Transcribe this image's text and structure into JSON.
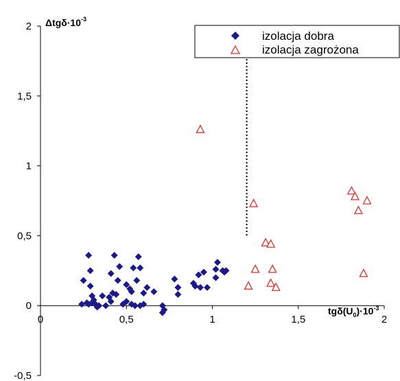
{
  "chart_data": {
    "type": "scatter",
    "title": "",
    "ylabel": {
      "main": "Δtgδ·10",
      "sup": "-3"
    },
    "xlabel": {
      "part1": "tgδ(U",
      "sub": "0",
      "part2": ")·10",
      "sup": "-3"
    },
    "xlim": [
      0,
      2
    ],
    "ylim": [
      -0.5,
      2
    ],
    "x_ticks": [
      0,
      0.5,
      1,
      1.5,
      2
    ],
    "x_tick_labels": [
      "0",
      "0,5",
      "1",
      "1,5",
      "2"
    ],
    "y_ticks": [
      -0.5,
      0,
      0.5,
      1,
      1.5,
      2
    ],
    "y_tick_labels": [
      "-0,5",
      "0",
      "0,5",
      "1",
      "1,5",
      "2"
    ],
    "grid": false,
    "legend_position": "top-right",
    "threshold_line": {
      "x": 1.2,
      "y_from": 0.5,
      "y_to": 2,
      "style": "dotted"
    },
    "series": [
      {
        "name": "izolacja dobra",
        "marker": "diamond",
        "color": "#1a1a8c",
        "points": [
          [
            0.24,
            0.01
          ],
          [
            0.25,
            0.18
          ],
          [
            0.27,
            0.02
          ],
          [
            0.28,
            0.36
          ],
          [
            0.28,
            0.01
          ],
          [
            0.29,
            0.25
          ],
          [
            0.29,
            0.14
          ],
          [
            0.3,
            0.07
          ],
          [
            0.3,
            0.02
          ],
          [
            0.31,
            0.04
          ],
          [
            0.32,
            0.01
          ],
          [
            0.33,
            -0.01
          ],
          [
            0.34,
            0.0
          ],
          [
            0.36,
            0.07
          ],
          [
            0.38,
            0.0
          ],
          [
            0.4,
            0.06
          ],
          [
            0.41,
            0.03
          ],
          [
            0.41,
            0.23
          ],
          [
            0.42,
            0.09
          ],
          [
            0.43,
            0.36
          ],
          [
            0.44,
            0.08
          ],
          [
            0.45,
            0.18
          ],
          [
            0.46,
            0.28
          ],
          [
            0.48,
            0.01
          ],
          [
            0.5,
            0.15
          ],
          [
            0.5,
            0.03
          ],
          [
            0.52,
            0.12
          ],
          [
            0.53,
            0.01
          ],
          [
            0.53,
            0.1
          ],
          [
            0.54,
            0.27
          ],
          [
            0.55,
            0.0
          ],
          [
            0.56,
            0.18
          ],
          [
            0.57,
            0.35
          ],
          [
            0.58,
            0.27
          ],
          [
            0.58,
            0.0
          ],
          [
            0.6,
            0.01
          ],
          [
            0.6,
            0.09
          ],
          [
            0.62,
            0.13
          ],
          [
            0.66,
            0.1
          ],
          [
            0.71,
            -0.05
          ],
          [
            0.71,
            0.0
          ],
          [
            0.72,
            -0.03
          ],
          [
            0.78,
            0.19
          ],
          [
            0.8,
            0.13
          ],
          [
            0.8,
            0.08
          ],
          [
            0.89,
            0.16
          ],
          [
            0.9,
            0.14
          ],
          [
            0.92,
            0.22
          ],
          [
            0.93,
            0.13
          ],
          [
            0.95,
            0.24
          ],
          [
            0.97,
            0.13
          ],
          [
            1.02,
            0.2
          ],
          [
            1.02,
            0.26
          ],
          [
            1.03,
            0.31
          ],
          [
            1.06,
            0.25
          ],
          [
            1.07,
            0.24
          ],
          [
            1.08,
            0.25
          ]
        ]
      },
      {
        "name": "izolacja zagrożona",
        "marker": "triangle-open",
        "color": "#e0302b",
        "points": [
          [
            0.93,
            1.26
          ],
          [
            1.21,
            0.14
          ],
          [
            1.24,
            0.73
          ],
          [
            1.25,
            0.26
          ],
          [
            1.31,
            0.45
          ],
          [
            1.34,
            0.44
          ],
          [
            1.34,
            0.16
          ],
          [
            1.35,
            0.26
          ],
          [
            1.37,
            0.13
          ],
          [
            1.81,
            0.82
          ],
          [
            1.83,
            0.78
          ],
          [
            1.85,
            0.68
          ],
          [
            1.88,
            0.23
          ],
          [
            1.9,
            0.75
          ]
        ]
      }
    ]
  }
}
